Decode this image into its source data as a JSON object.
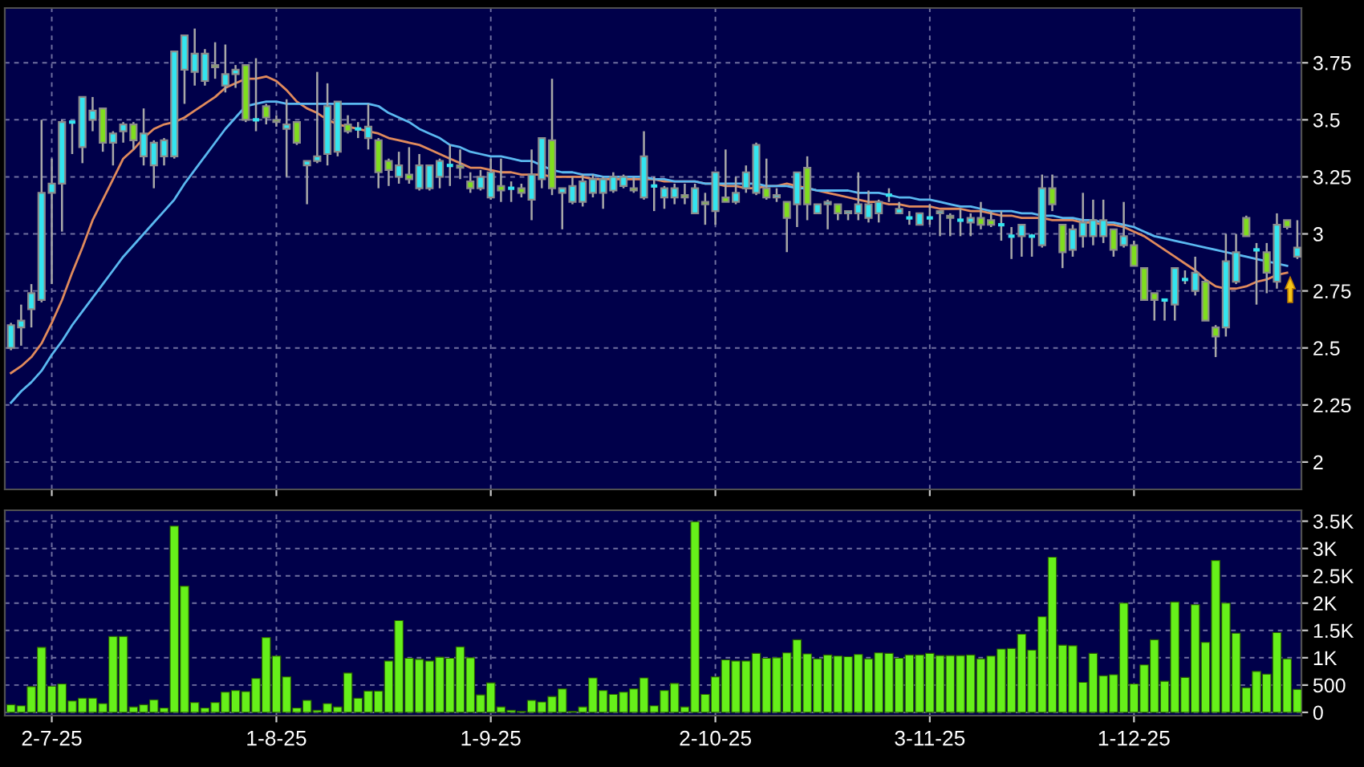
{
  "chart_data": [
    {
      "type": "candlestick",
      "tick_labels": "y",
      "grid": true,
      "categories": [
        null,
        null,
        null,
        null,
        null,
        null,
        null,
        null,
        null,
        null,
        null,
        null,
        null,
        null,
        null,
        null,
        null,
        null,
        null,
        null,
        null,
        null,
        null,
        null,
        null,
        null,
        null,
        null,
        null,
        null,
        null,
        null,
        null,
        null,
        null,
        null,
        null,
        null,
        null,
        null,
        null,
        null,
        null,
        null,
        null,
        null,
        null,
        null,
        null,
        null,
        null,
        null,
        null,
        null,
        null,
        null,
        null,
        null,
        null,
        null,
        null,
        null,
        null,
        null,
        null,
        null,
        null,
        null,
        null,
        null,
        null,
        null,
        null,
        null,
        null,
        null,
        null,
        null,
        null,
        null,
        null,
        null,
        null,
        null,
        null,
        null,
        null,
        null,
        null,
        null,
        null,
        null,
        null,
        null,
        null,
        null,
        null,
        null,
        null,
        null,
        null,
        null,
        null,
        null,
        null,
        null,
        null,
        null,
        null,
        null,
        null,
        null,
        null,
        null,
        null,
        null,
        null,
        null,
        null,
        null,
        null,
        null,
        null,
        null,
        null,
        null,
        null
      ],
      "ohlc": [
        [
          2.5,
          2.61,
          2.49,
          2.6
        ],
        [
          2.59,
          2.69,
          2.51,
          2.62
        ],
        [
          2.67,
          2.78,
          2.59,
          2.74
        ],
        [
          2.71,
          3.5,
          2.7,
          3.18
        ],
        [
          3.18,
          3.33,
          2.78,
          3.22
        ],
        [
          3.22,
          3.5,
          3.01,
          3.49
        ],
        [
          3.49,
          3.49,
          3.35,
          3.49
        ],
        [
          3.38,
          3.6,
          3.31,
          3.6
        ],
        [
          3.5,
          3.6,
          3.45,
          3.54
        ],
        [
          3.55,
          3.55,
          3.36,
          3.4
        ],
        [
          3.4,
          3.45,
          3.3,
          3.44
        ],
        [
          3.45,
          3.49,
          3.4,
          3.48
        ],
        [
          3.48,
          3.49,
          3.37,
          3.41
        ],
        [
          3.34,
          3.55,
          3.3,
          3.44
        ],
        [
          3.3,
          3.41,
          3.2,
          3.4
        ],
        [
          3.34,
          3.42,
          3.3,
          3.41
        ],
        [
          3.34,
          3.8,
          3.33,
          3.8
        ],
        [
          3.72,
          3.87,
          3.57,
          3.87
        ],
        [
          3.71,
          3.9,
          3.65,
          3.79
        ],
        [
          3.67,
          3.81,
          3.65,
          3.79
        ],
        [
          3.74,
          3.84,
          3.68,
          3.73
        ],
        [
          3.65,
          3.83,
          3.62,
          3.7
        ],
        [
          3.7,
          3.74,
          3.64,
          3.72
        ],
        [
          3.74,
          3.74,
          3.49,
          3.5
        ],
        [
          3.5,
          3.77,
          3.45,
          3.5
        ],
        [
          3.56,
          3.57,
          3.48,
          3.51
        ],
        [
          3.5,
          3.52,
          3.47,
          3.49
        ],
        [
          3.46,
          3.59,
          3.25,
          3.48
        ],
        [
          3.49,
          3.49,
          3.39,
          3.4
        ],
        [
          3.3,
          3.32,
          3.13,
          3.32
        ],
        [
          3.32,
          3.71,
          3.31,
          3.34
        ],
        [
          3.35,
          3.66,
          3.3,
          3.56
        ],
        [
          3.36,
          3.58,
          3.34,
          3.58
        ],
        [
          3.48,
          3.52,
          3.44,
          3.45
        ],
        [
          3.46,
          3.49,
          3.42,
          3.46
        ],
        [
          3.42,
          3.57,
          3.37,
          3.47
        ],
        [
          3.41,
          3.42,
          3.2,
          3.27
        ],
        [
          3.32,
          3.33,
          3.21,
          3.28
        ],
        [
          3.25,
          3.36,
          3.22,
          3.3
        ],
        [
          3.26,
          3.38,
          3.22,
          3.24
        ],
        [
          3.2,
          3.35,
          3.19,
          3.3
        ],
        [
          3.2,
          3.3,
          3.19,
          3.3
        ],
        [
          3.25,
          3.33,
          3.2,
          3.32
        ],
        [
          3.3,
          3.39,
          3.21,
          3.3
        ],
        [
          3.3,
          3.37,
          3.24,
          3.29
        ],
        [
          3.23,
          3.27,
          3.18,
          3.2
        ],
        [
          3.2,
          3.28,
          3.19,
          3.25
        ],
        [
          3.16,
          3.33,
          3.15,
          3.27
        ],
        [
          3.21,
          3.33,
          3.14,
          3.19
        ],
        [
          3.2,
          3.23,
          3.14,
          3.2
        ],
        [
          3.2,
          3.22,
          3.16,
          3.18
        ],
        [
          3.15,
          3.37,
          3.06,
          3.26
        ],
        [
          3.24,
          3.42,
          3.2,
          3.42
        ],
        [
          3.41,
          3.68,
          3.17,
          3.2
        ],
        [
          3.18,
          3.2,
          3.02,
          3.2
        ],
        [
          3.14,
          3.25,
          3.13,
          3.21
        ],
        [
          3.14,
          3.26,
          3.12,
          3.23
        ],
        [
          3.18,
          3.26,
          3.16,
          3.24
        ],
        [
          3.18,
          3.25,
          3.11,
          3.24
        ],
        [
          3.19,
          3.27,
          3.18,
          3.25
        ],
        [
          3.21,
          3.26,
          3.2,
          3.25
        ],
        [
          3.2,
          3.25,
          3.18,
          3.19
        ],
        [
          3.16,
          3.45,
          3.15,
          3.34
        ],
        [
          3.21,
          3.25,
          3.1,
          3.21
        ],
        [
          3.16,
          3.21,
          3.11,
          3.2
        ],
        [
          3.16,
          3.22,
          3.13,
          3.2
        ],
        [
          3.17,
          3.22,
          3.13,
          3.16
        ],
        [
          3.09,
          3.22,
          3.09,
          3.2
        ],
        [
          3.14,
          3.18,
          3.04,
          3.13
        ],
        [
          3.1,
          3.27,
          3.04,
          3.27
        ],
        [
          3.16,
          3.37,
          3.14,
          3.14
        ],
        [
          3.14,
          3.25,
          3.13,
          3.18
        ],
        [
          3.2,
          3.3,
          3.18,
          3.27
        ],
        [
          3.18,
          3.4,
          3.17,
          3.39
        ],
        [
          3.2,
          3.33,
          3.15,
          3.16
        ],
        [
          3.16,
          3.2,
          3.14,
          3.17
        ],
        [
          3.14,
          3.14,
          2.92,
          3.07
        ],
        [
          3.13,
          3.27,
          3.03,
          3.27
        ],
        [
          3.29,
          3.34,
          3.06,
          3.13
        ],
        [
          3.09,
          3.13,
          3.09,
          3.13
        ],
        [
          3.13,
          3.15,
          3.02,
          3.14
        ],
        [
          3.13,
          3.13,
          3.06,
          3.09
        ],
        [
          3.09,
          3.1,
          3.06,
          3.1
        ],
        [
          3.09,
          3.27,
          3.06,
          3.13
        ],
        [
          3.07,
          3.19,
          3.05,
          3.13
        ],
        [
          3.09,
          3.15,
          3.05,
          3.14
        ],
        [
          3.17,
          3.2,
          3.14,
          3.17
        ],
        [
          3.09,
          3.14,
          3.09,
          3.11
        ],
        [
          3.07,
          3.1,
          3.04,
          3.07
        ],
        [
          3.04,
          3.09,
          3.04,
          3.09
        ],
        [
          3.07,
          3.13,
          3.04,
          3.07
        ],
        [
          3.09,
          3.1,
          2.99,
          3.1
        ],
        [
          3.08,
          3.09,
          2.99,
          3.07
        ],
        [
          3.06,
          3.11,
          2.99,
          3.06
        ],
        [
          3.05,
          3.09,
          2.99,
          3.07
        ],
        [
          3.07,
          3.14,
          3.02,
          3.04
        ],
        [
          3.06,
          3.1,
          3.03,
          3.04
        ],
        [
          3.04,
          3.1,
          2.97,
          3.04
        ],
        [
          2.99,
          3.03,
          2.89,
          2.99
        ],
        [
          2.99,
          3.04,
          2.9,
          3.04
        ],
        [
          2.99,
          3.0,
          2.9,
          2.99
        ],
        [
          2.95,
          3.26,
          2.94,
          3.2
        ],
        [
          3.2,
          3.26,
          3.1,
          3.13
        ],
        [
          3.04,
          3.04,
          2.85,
          2.92
        ],
        [
          2.93,
          3.04,
          2.9,
          3.02
        ],
        [
          2.99,
          3.18,
          2.94,
          3.05
        ],
        [
          2.99,
          3.15,
          2.95,
          3.06
        ],
        [
          2.99,
          3.15,
          2.96,
          3.06
        ],
        [
          3.02,
          3.02,
          2.9,
          2.93
        ],
        [
          2.95,
          3.14,
          2.94,
          2.99
        ],
        [
          2.95,
          2.97,
          2.86,
          2.86
        ],
        [
          2.85,
          2.85,
          2.71,
          2.71
        ],
        [
          2.74,
          2.74,
          2.62,
          2.71
        ],
        [
          2.71,
          2.71,
          2.62,
          2.71
        ],
        [
          2.69,
          2.85,
          2.62,
          2.85
        ],
        [
          2.8,
          2.84,
          2.78,
          2.8
        ],
        [
          2.75,
          2.9,
          2.73,
          2.83
        ],
        [
          2.79,
          2.8,
          2.62,
          2.62
        ],
        [
          2.59,
          2.6,
          2.46,
          2.55
        ],
        [
          2.59,
          3.0,
          2.55,
          2.88
        ],
        [
          2.79,
          3.0,
          2.78,
          2.92
        ],
        [
          3.07,
          3.08,
          2.99,
          2.99
        ],
        [
          2.93,
          2.96,
          2.69,
          2.93
        ],
        [
          2.92,
          2.96,
          2.74,
          2.83
        ],
        [
          2.79,
          3.09,
          2.76,
          3.04
        ],
        [
          3.06,
          3.06,
          3.02,
          3.03
        ],
        [
          2.9,
          3.06,
          2.89,
          2.94
        ]
      ],
      "colors": [
        "#33e5f0",
        "#33e5f0",
        "#33e5f0",
        "#33e5f0",
        "#33e5f0",
        "#33e5f0",
        "#33e5f0",
        "#33e5f0",
        "#33e5f0",
        "#7fdd1e",
        "#33e5f0",
        "#33e5f0",
        "#7fdd1e",
        "#33e5f0",
        "#33e5f0",
        "#33e5f0",
        "#33e5f0",
        "#33e5f0",
        "#33e5f0",
        "#33e5f0",
        "#7fdd1e",
        "#33e5f0",
        "#33e5f0",
        "#7fdd1e",
        "#33e5f0",
        "#7fdd1e",
        "#7fdd1e",
        "#33e5f0",
        "#7fdd1e",
        "#33e5f0",
        "#33e5f0",
        "#33e5f0",
        "#33e5f0",
        "#7fdd1e",
        "#33e5f0",
        "#33e5f0",
        "#7fdd1e",
        "#7fdd1e",
        "#33e5f0",
        "#7fdd1e",
        "#33e5f0",
        "#33e5f0",
        "#33e5f0",
        "#33e5f0",
        "#7fdd1e",
        "#7fdd1e",
        "#33e5f0",
        "#33e5f0",
        "#7fdd1e",
        "#33e5f0",
        "#7fdd1e",
        "#33e5f0",
        "#33e5f0",
        "#7fdd1e",
        "#33e5f0",
        "#33e5f0",
        "#33e5f0",
        "#33e5f0",
        "#33e5f0",
        "#33e5f0",
        "#33e5f0",
        "#7fdd1e",
        "#33e5f0",
        "#33e5f0",
        "#33e5f0",
        "#33e5f0",
        "#7fdd1e",
        "#33e5f0",
        "#7fdd1e",
        "#33e5f0",
        "#7fdd1e",
        "#33e5f0",
        "#33e5f0",
        "#33e5f0",
        "#7fdd1e",
        "#33e5f0",
        "#7fdd1e",
        "#33e5f0",
        "#7fdd1e",
        "#33e5f0",
        "#33e5f0",
        "#7fdd1e",
        "#33e5f0",
        "#33e5f0",
        "#33e5f0",
        "#33e5f0",
        "#33e5f0",
        "#33e5f0",
        "#33e5f0",
        "#33e5f0",
        "#33e5f0",
        "#33e5f0",
        "#7fdd1e",
        "#33e5f0",
        "#33e5f0",
        "#7fdd1e",
        "#7fdd1e",
        "#33e5f0",
        "#33e5f0",
        "#33e5f0",
        "#33e5f0",
        "#33e5f0",
        "#7fdd1e",
        "#7fdd1e",
        "#33e5f0",
        "#33e5f0",
        "#33e5f0",
        "#33e5f0",
        "#7fdd1e",
        "#33e5f0",
        "#7fdd1e",
        "#7fdd1e",
        "#7fdd1e",
        "#33e5f0",
        "#33e5f0",
        "#33e5f0",
        "#33e5f0",
        "#7fdd1e",
        "#7fdd1e",
        "#33e5f0",
        "#33e5f0",
        "#7fdd1e",
        "#33e5f0",
        "#7fdd1e",
        "#33e5f0",
        "#7fdd1e",
        "#33e5f0"
      ],
      "series": [
        {
          "type": "line",
          "color": "#e08a5c",
          "values": [
            2.39,
            2.42,
            2.46,
            2.52,
            2.61,
            2.71,
            2.83,
            2.94,
            3.06,
            3.15,
            3.24,
            3.33,
            3.37,
            3.42,
            3.46,
            3.48,
            3.49,
            3.51,
            3.54,
            3.57,
            3.6,
            3.64,
            3.66,
            3.68,
            3.68,
            3.69,
            3.67,
            3.63,
            3.58,
            3.55,
            3.53,
            3.5,
            3.48,
            3.47,
            3.46,
            3.45,
            3.44,
            3.42,
            3.41,
            3.4,
            3.39,
            3.37,
            3.35,
            3.33,
            3.31,
            3.29,
            3.29,
            3.28,
            3.27,
            3.27,
            3.26,
            3.26,
            3.26,
            3.25,
            3.25,
            3.25,
            3.25,
            3.24,
            3.24,
            3.24,
            3.24,
            3.24,
            3.24,
            3.24,
            3.23,
            3.23,
            3.23,
            3.23,
            3.22,
            3.22,
            3.21,
            3.21,
            3.2,
            3.2,
            3.21,
            3.21,
            3.22,
            3.21,
            3.2,
            3.19,
            3.18,
            3.17,
            3.16,
            3.15,
            3.14,
            3.14,
            3.13,
            3.13,
            3.12,
            3.12,
            3.12,
            3.11,
            3.11,
            3.11,
            3.1,
            3.1,
            3.09,
            3.08,
            3.08,
            3.07,
            3.07,
            3.07,
            3.06,
            3.06,
            3.06,
            3.05,
            3.05,
            3.04,
            3.04,
            3.03,
            3.01,
            2.99,
            2.96,
            2.93,
            2.9,
            2.87,
            2.84,
            2.8,
            2.77,
            2.76,
            2.76,
            2.77,
            2.79,
            2.8,
            2.82,
            2.83,
            null
          ]
        },
        {
          "type": "line",
          "color": "#5ab8f0",
          "values": [
            2.26,
            2.31,
            2.35,
            2.4,
            2.47,
            2.53,
            2.6,
            2.66,
            2.72,
            2.78,
            2.84,
            2.9,
            2.95,
            3.0,
            3.05,
            3.1,
            3.15,
            3.22,
            3.28,
            3.34,
            3.4,
            3.46,
            3.51,
            3.56,
            3.57,
            3.58,
            3.58,
            3.57,
            3.57,
            3.57,
            3.57,
            3.57,
            3.57,
            3.57,
            3.57,
            3.57,
            3.56,
            3.53,
            3.51,
            3.49,
            3.46,
            3.44,
            3.42,
            3.39,
            3.38,
            3.36,
            3.35,
            3.34,
            3.34,
            3.33,
            3.32,
            3.32,
            3.3,
            3.28,
            3.27,
            3.27,
            3.26,
            3.26,
            3.25,
            3.25,
            3.25,
            3.25,
            3.25,
            3.24,
            3.24,
            3.23,
            3.23,
            3.23,
            3.22,
            3.22,
            3.22,
            3.22,
            3.22,
            3.22,
            3.21,
            3.21,
            3.21,
            3.2,
            3.2,
            3.19,
            3.19,
            3.19,
            3.19,
            3.18,
            3.18,
            3.18,
            3.17,
            3.16,
            3.16,
            3.15,
            3.15,
            3.14,
            3.13,
            3.12,
            3.12,
            3.11,
            3.1,
            3.1,
            3.1,
            3.09,
            3.09,
            3.08,
            3.08,
            3.07,
            3.07,
            3.06,
            3.06,
            3.05,
            3.05,
            3.04,
            3.03,
            3.01,
            2.99,
            2.98,
            2.97,
            2.96,
            2.95,
            2.94,
            2.93,
            2.92,
            2.91,
            2.9,
            2.89,
            2.88,
            2.87,
            2.86,
            null
          ]
        }
      ],
      "ylim": [
        1.88,
        3.99
      ],
      "yticks": [
        2,
        2.25,
        2.5,
        2.75,
        3,
        3.25,
        3.5,
        3.75
      ]
    },
    {
      "type": "bar",
      "grid": true,
      "color": "#66f01a",
      "categories": [
        null,
        null,
        null,
        null,
        "2-7-25",
        null,
        null,
        null,
        null,
        null,
        null,
        null,
        null,
        null,
        null,
        null,
        null,
        null,
        null,
        null,
        null,
        null,
        null,
        null,
        null,
        null,
        "1-8-25",
        null,
        null,
        null,
        null,
        null,
        null,
        null,
        null,
        null,
        null,
        null,
        null,
        null,
        null,
        null,
        null,
        null,
        null,
        null,
        null,
        "1-9-25",
        null,
        null,
        null,
        null,
        null,
        null,
        null,
        null,
        null,
        null,
        null,
        null,
        null,
        null,
        null,
        null,
        null,
        null,
        null,
        null,
        null,
        "2-10-25",
        null,
        null,
        null,
        null,
        null,
        null,
        null,
        null,
        null,
        null,
        null,
        null,
        null,
        null,
        null,
        null,
        null,
        null,
        null,
        null,
        "3-11-25",
        null,
        null,
        null,
        null,
        null,
        null,
        null,
        null,
        null,
        null,
        null,
        null,
        null,
        null,
        null,
        null,
        null,
        null,
        null,
        "1-12-25",
        null,
        null,
        null,
        null,
        null,
        null,
        null,
        null,
        null,
        null,
        null,
        null,
        null,
        null,
        null,
        null
      ],
      "values": [
        140,
        120,
        470,
        1190,
        480,
        520,
        210,
        260,
        260,
        160,
        1390,
        1390,
        100,
        140,
        230,
        80,
        3410,
        2310,
        180,
        80,
        180,
        370,
        400,
        380,
        620,
        1370,
        1030,
        650,
        80,
        220,
        40,
        160,
        100,
        720,
        260,
        390,
        390,
        940,
        1680,
        990,
        970,
        940,
        1010,
        990,
        1200,
        1000,
        320,
        540,
        100,
        40,
        20,
        220,
        190,
        290,
        430,
        20,
        100,
        630,
        400,
        330,
        370,
        430,
        630,
        120,
        400,
        530,
        100,
        3490,
        330,
        650,
        960,
        940,
        940,
        1080,
        990,
        1000,
        1090,
        1330,
        1070,
        980,
        1050,
        1030,
        1020,
        1060,
        980,
        1090,
        1080,
        990,
        1050,
        1050,
        1080,
        1040,
        1040,
        1040,
        1050,
        980,
        1030,
        1160,
        1170,
        1430,
        1140,
        1750,
        2840,
        1230,
        1220,
        550,
        1080,
        670,
        690,
        2000,
        520,
        870,
        1330,
        570,
        2020,
        640,
        1970,
        1280,
        2780,
        2000,
        1450,
        450,
        750,
        700,
        1460,
        980,
        420
      ],
      "ylim": [
        -60,
        3700
      ],
      "yticks": [
        0,
        500,
        {
          "value": 1000,
          "label": "1K"
        },
        {
          "value": 1500,
          "label": "1.5K"
        },
        {
          "value": 2000,
          "label": "2K"
        },
        {
          "value": 2500,
          "label": "2.5K"
        },
        {
          "value": 3000,
          "label": "3K"
        },
        {
          "value": 3500,
          "label": "3.5K"
        }
      ]
    }
  ]
}
